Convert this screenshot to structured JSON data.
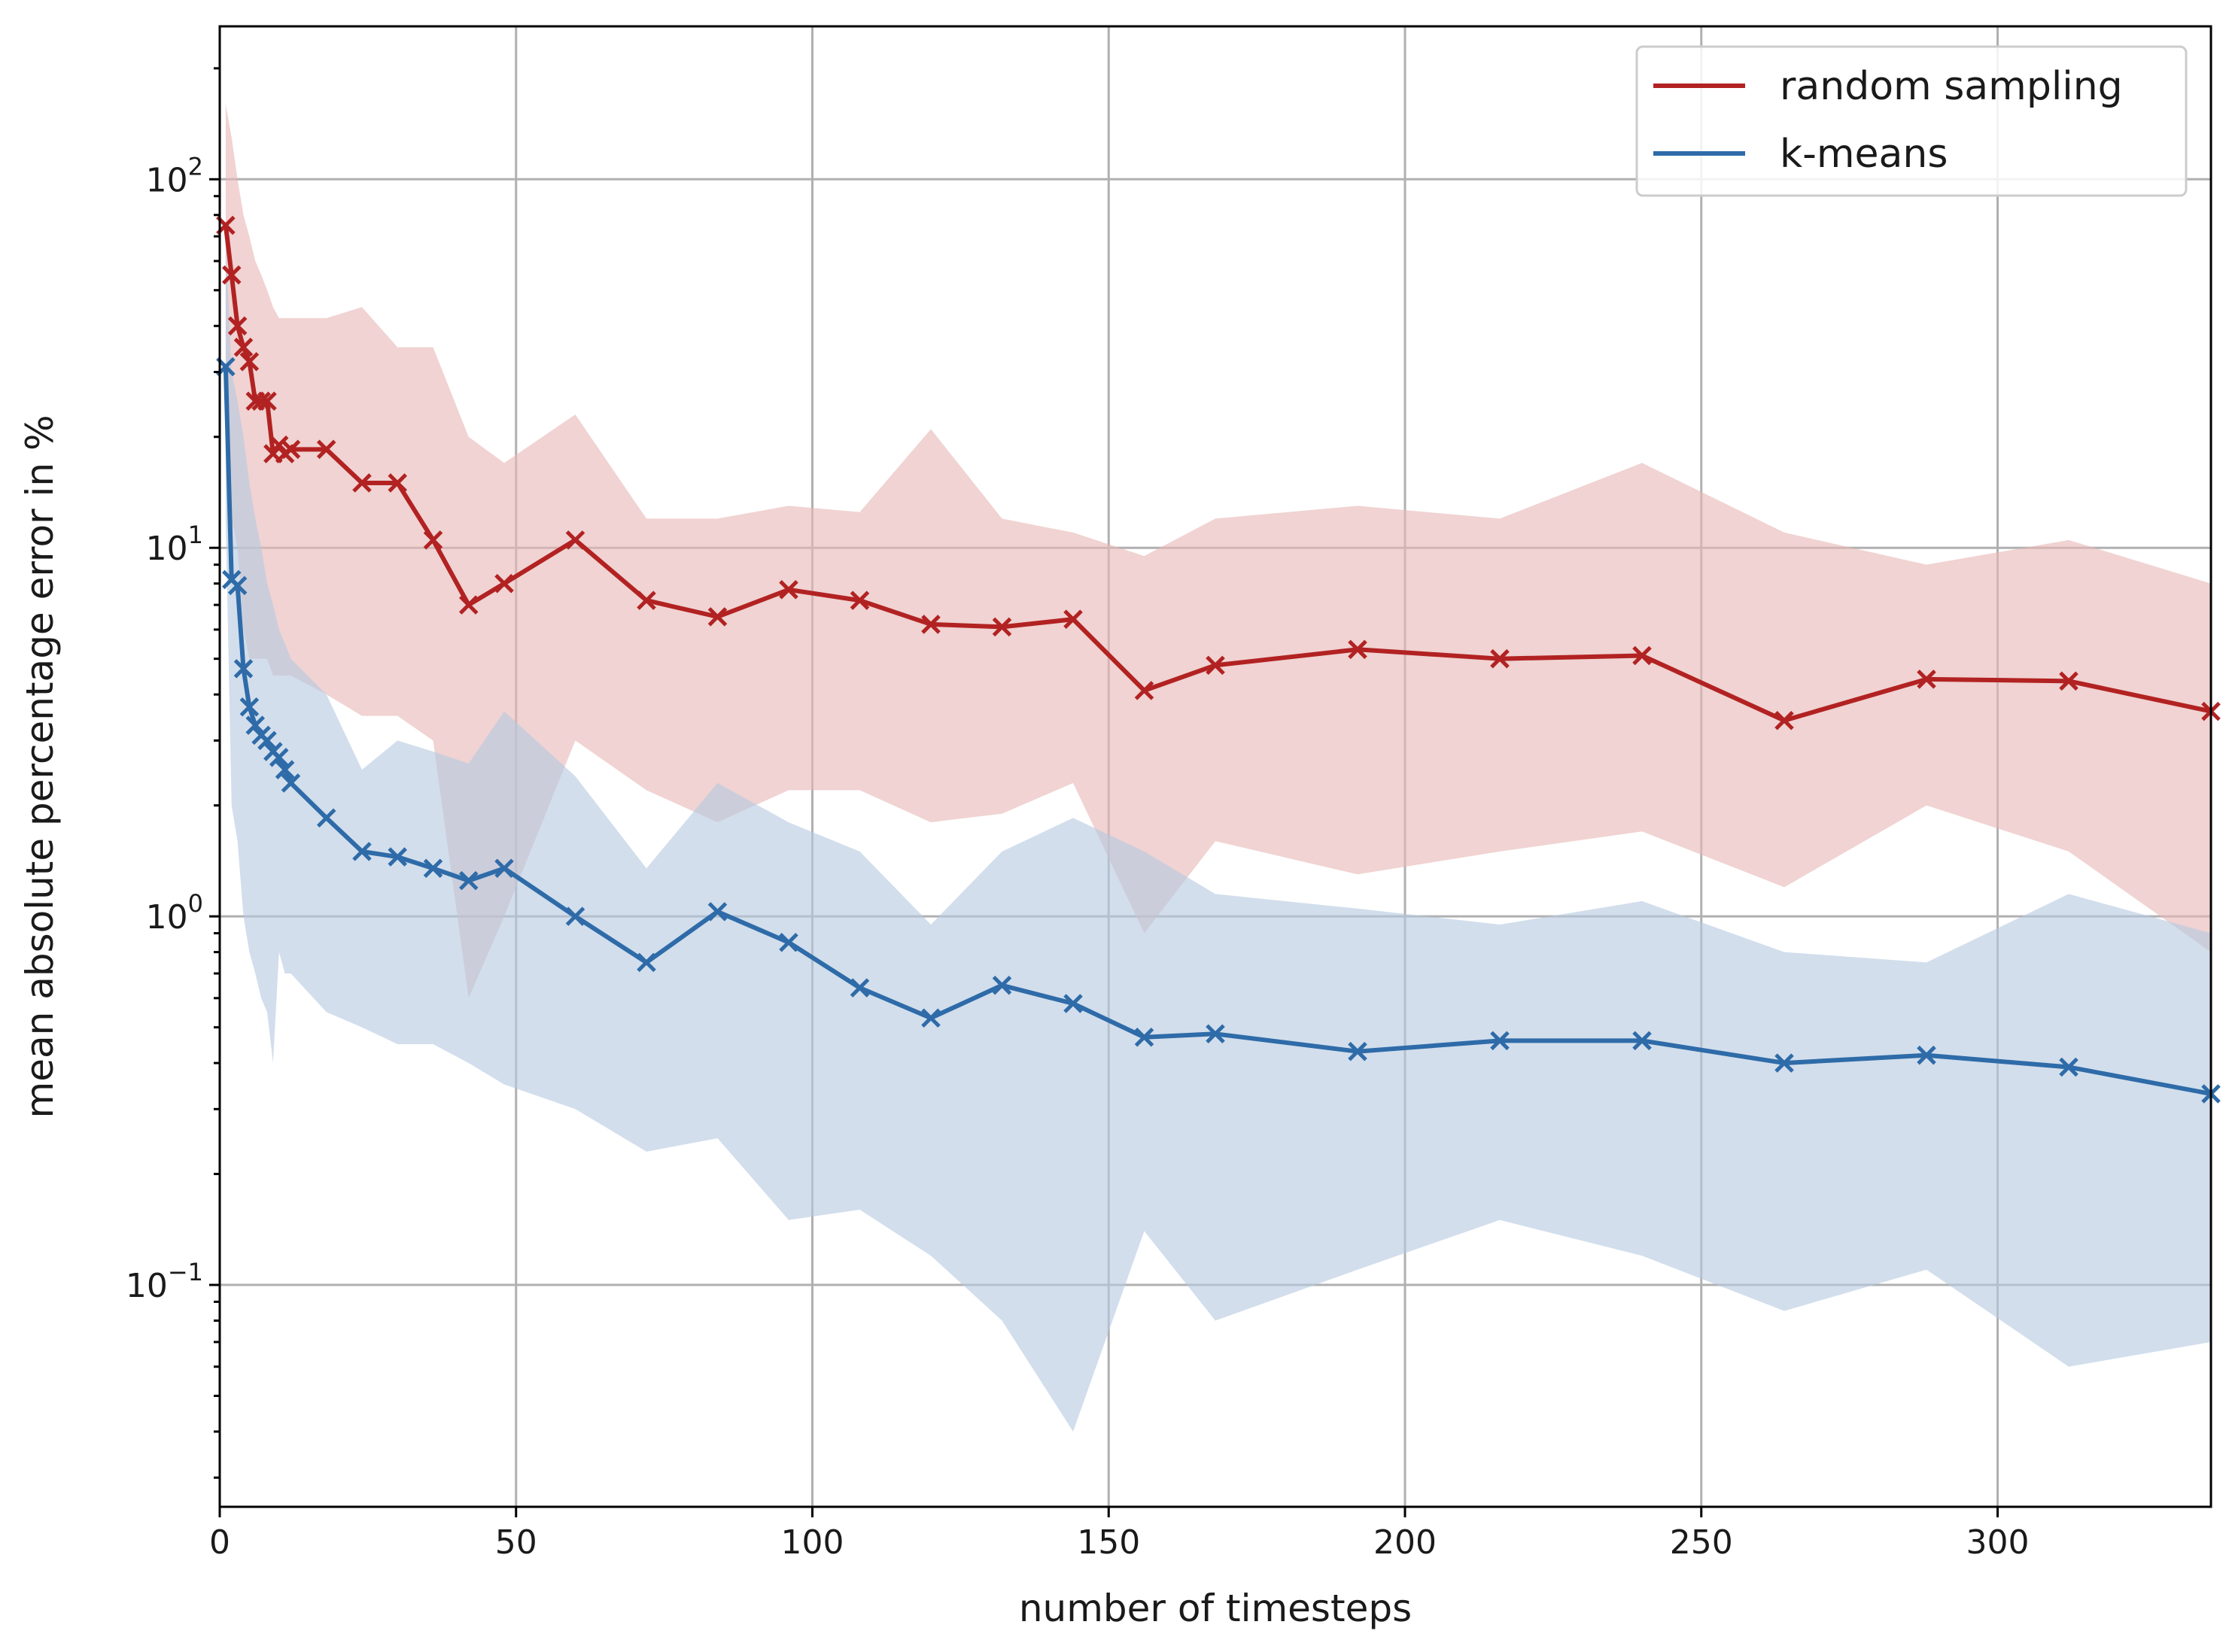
{
  "chart_data": {
    "type": "line",
    "title": "",
    "xlabel": "number of timesteps",
    "ylabel": "mean absolute percentage error in %",
    "xscale": "linear",
    "yscale": "log",
    "xlim": [
      0,
      336
    ],
    "ylim": [
      0.025,
      260
    ],
    "grid": true,
    "legend_position": "top-right",
    "x_ticks": [
      0,
      50,
      100,
      150,
      200,
      250,
      300
    ],
    "x_tick_labels": [
      "0",
      "50",
      "100",
      "150",
      "200",
      "250",
      "300"
    ],
    "y_ticks": [
      0.1,
      1,
      10,
      100
    ],
    "y_tick_labels": [
      {
        "base": "10",
        "exp": "−1"
      },
      {
        "base": "10",
        "exp": "0"
      },
      {
        "base": "10",
        "exp": "1"
      },
      {
        "base": "10",
        "exp": "2"
      }
    ],
    "series": [
      {
        "name": "random sampling",
        "color": "#b22222",
        "band_color": "#e6b8b7",
        "marker": "x",
        "x": [
          1,
          2,
          3,
          4,
          5,
          6,
          7,
          8,
          9,
          10,
          11,
          12,
          18,
          24,
          30,
          36,
          42,
          48,
          60,
          72,
          84,
          96,
          108,
          120,
          132,
          144,
          156,
          168,
          192,
          216,
          240,
          264,
          288,
          312,
          336
        ],
        "y": [
          75,
          55,
          40,
          35,
          32,
          25,
          25,
          25,
          18,
          19,
          18,
          18.5,
          18.5,
          15,
          15,
          10.5,
          7,
          8,
          10.5,
          7.2,
          6.5,
          7.7,
          7.2,
          6.2,
          6.1,
          6.4,
          4.1,
          4.8,
          5.3,
          5.0,
          5.1,
          3.4,
          4.4,
          4.35,
          3.6
        ],
        "lower": [
          25,
          12,
          10,
          6,
          5,
          5,
          5,
          5,
          4.5,
          4.5,
          4.5,
          4.5,
          4,
          3.5,
          3.5,
          3,
          0.6,
          1,
          3,
          2.2,
          1.8,
          2.2,
          2.2,
          1.8,
          1.9,
          2.3,
          0.9,
          1.6,
          1.3,
          1.5,
          1.7,
          1.2,
          2.0,
          1.5,
          0.8
        ],
        "upper": [
          160,
          130,
          100,
          80,
          70,
          60,
          55,
          50,
          45,
          42,
          42,
          42,
          42,
          45,
          35,
          35,
          20,
          17,
          23,
          12,
          12,
          13,
          12.5,
          21,
          12,
          11,
          9.5,
          12,
          13,
          12,
          17,
          11,
          9,
          10.5,
          8
        ]
      },
      {
        "name": "k-means",
        "color": "#2e6ba8",
        "band_color": "#b7c9e0",
        "marker": "x",
        "x": [
          1,
          2,
          3,
          4,
          5,
          6,
          7,
          8,
          9,
          10,
          11,
          12,
          18,
          24,
          30,
          36,
          42,
          48,
          60,
          72,
          84,
          96,
          108,
          120,
          132,
          144,
          156,
          168,
          192,
          216,
          240,
          264,
          288,
          312,
          336
        ],
        "y": [
          31,
          8.2,
          7.9,
          4.7,
          3.7,
          3.3,
          3.1,
          3.0,
          2.8,
          2.7,
          2.5,
          2.3,
          1.85,
          1.5,
          1.45,
          1.35,
          1.25,
          1.35,
          1.0,
          0.75,
          1.03,
          0.85,
          0.64,
          0.53,
          0.65,
          0.58,
          0.47,
          0.48,
          0.43,
          0.46,
          0.46,
          0.4,
          0.42,
          0.39,
          0.33
        ],
        "lower": [
          12,
          2.0,
          1.6,
          1.0,
          0.8,
          0.7,
          0.6,
          0.55,
          0.4,
          0.8,
          0.7,
          0.7,
          0.55,
          0.5,
          0.45,
          0.45,
          0.4,
          0.35,
          0.3,
          0.23,
          0.25,
          0.15,
          0.16,
          0.12,
          0.08,
          0.04,
          0.14,
          0.08,
          0.11,
          0.15,
          0.12,
          0.085,
          0.11,
          0.06,
          0.07
        ],
        "upper": [
          70,
          30,
          25,
          20,
          15,
          12,
          10,
          8,
          7,
          6,
          5.5,
          5,
          4,
          2.5,
          3.0,
          2.8,
          2.6,
          3.6,
          2.4,
          1.35,
          2.3,
          1.8,
          1.5,
          0.95,
          1.5,
          1.85,
          1.5,
          1.15,
          1.05,
          0.95,
          1.1,
          0.8,
          0.75,
          1.15,
          0.9
        ]
      }
    ]
  }
}
